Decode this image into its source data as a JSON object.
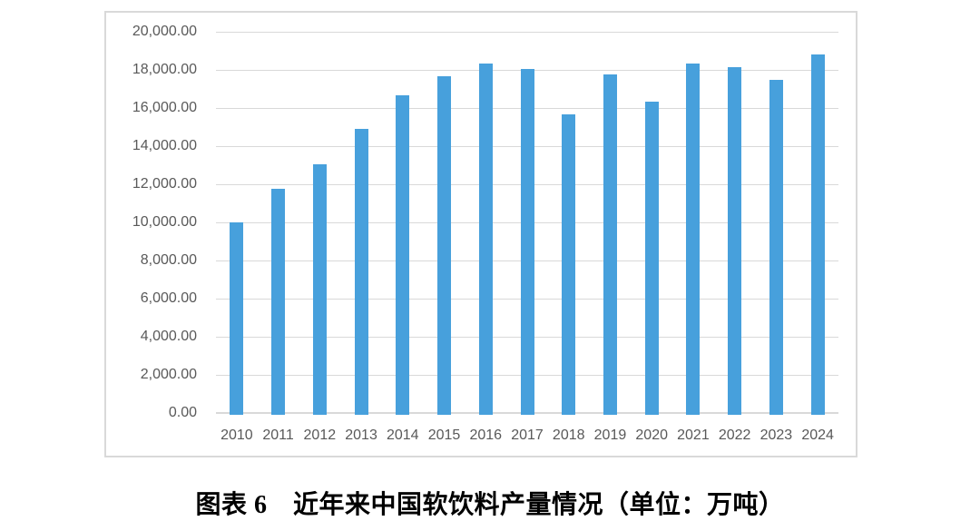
{
  "caption": "图表 6　近年来中国软饮料产量情况（单位：万吨）",
  "colors": {
    "bar": "#47A0DC",
    "grid": "#D9D9D9",
    "axis": "#D9D9D9",
    "tick_text": "#595959",
    "frame_border": "#D9D9D9",
    "caption_text": "#000000"
  },
  "chart_data": {
    "type": "bar",
    "title": "",
    "xlabel": "",
    "ylabel": "",
    "categories": [
      "2010",
      "2011",
      "2012",
      "2013",
      "2014",
      "2015",
      "2016",
      "2017",
      "2018",
      "2019",
      "2020",
      "2021",
      "2022",
      "2023",
      "2024"
    ],
    "values": [
      9984,
      11762,
      13024,
      14927,
      16677,
      17661,
      18345,
      18051,
      15679,
      17763,
      16347,
      18334,
      18140,
      17466,
      18810
    ],
    "ylim": [
      0,
      20000
    ],
    "ytick_step": 2000,
    "ytick_labels": [
      "0.00",
      "2,000.00",
      "4,000.00",
      "6,000.00",
      "8,000.00",
      "10,000.00",
      "12,000.00",
      "14,000.00",
      "16,000.00",
      "18,000.00",
      "20,000.00"
    ],
    "grid": true,
    "legend": false,
    "bar_color": "#47A0DC"
  }
}
